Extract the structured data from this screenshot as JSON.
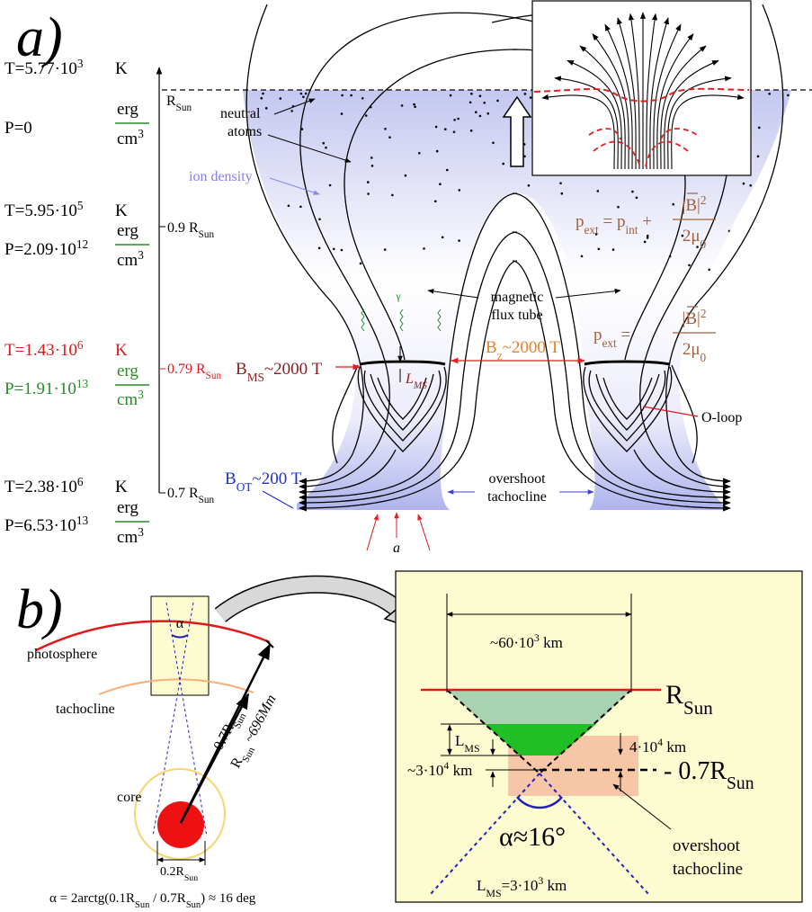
{
  "panel_a": {
    "label": "a)",
    "rows": [
      {
        "T": [
          "T=5.77·10",
          "3"
        ],
        "T_unit": "K",
        "P": [
          "P=0"
        ],
        "P_unit": [
          "erg",
          "cm",
          "3"
        ]
      },
      {
        "T": [
          "T=5.95·10",
          "5"
        ],
        "T_unit": "K",
        "P": [
          "P=2.09·10",
          "12"
        ],
        "P_unit": [
          "erg",
          "cm",
          "3"
        ]
      },
      {
        "T": [
          "T=1.43·10",
          "6"
        ],
        "T_unit": "K",
        "P": [
          "P=1.91·10",
          "13"
        ],
        "P_unit": [
          "erg",
          "cm",
          "3"
        ]
      },
      {
        "T": [
          "T=2.38·10",
          "6"
        ],
        "T_unit": "K",
        "P": [
          "P=6.53·10",
          "13"
        ],
        "P_unit": [
          "erg",
          "cm",
          "3"
        ]
      }
    ],
    "radius_labels": [
      [
        "R",
        "Sun"
      ],
      [
        "0.9 R",
        "Sun"
      ],
      [
        "0.79 R",
        "Sun"
      ],
      [
        "0.7 R",
        "Sun"
      ]
    ],
    "neutral_atoms": [
      "neutral",
      "atoms"
    ],
    "ion_density": "ion density",
    "magnetic_flux_tube": [
      "magnetic",
      "flux tube"
    ],
    "pressure_balance_top": [
      "p",
      "ext",
      " = p",
      "int",
      " + ",
      "|B|",
      "2",
      "2μ",
      "0"
    ],
    "pressure_balance_bottom": [
      "p",
      "ext",
      " = ",
      "|B|",
      "2",
      "2μ",
      "0"
    ],
    "b_ms": [
      "B",
      "MS",
      "~2000 T"
    ],
    "l_ms": [
      "L",
      "MS"
    ],
    "b_z": [
      "B",
      "z",
      "~2000 T"
    ],
    "o_loop": "O-loop",
    "b_ot": [
      "B",
      "OT",
      "~200 T"
    ],
    "overshoot_tachocline": [
      "overshoot",
      "tachocline"
    ],
    "gamma": "γ",
    "a": "a"
  },
  "panel_b": {
    "label": "b)",
    "photosphere": "photosphere",
    "tachocline": "tachocline",
    "core": "core",
    "alpha": "α",
    "tachocline_radius": [
      "0.7R",
      "Sun"
    ],
    "sun_radius": [
      "R",
      "Sun",
      " ~696Mm"
    ],
    "core_diameter": [
      "0.2R",
      "Sun"
    ],
    "formula": [
      "α = 2arctg(0.1R",
      "Sun",
      " / 0.7R",
      "Sun",
      ") ≈ 16 deg"
    ],
    "inset": {
      "width": [
        "~60·10",
        "3",
        " km"
      ],
      "photosphere_radius": [
        "R",
        "Sun"
      ],
      "l_ms": [
        "L",
        "MS"
      ],
      "gap": [
        "4·10",
        "4",
        " km"
      ],
      "depth": [
        "~3·10",
        "4",
        " km"
      ],
      "tachocline_radius": [
        "- 0.7R",
        "Sun"
      ],
      "alpha": "α≈16°",
      "overshoot_tachocline": [
        "overshoot",
        "tachocline"
      ],
      "l_ms_value": [
        "L",
        "MS",
        "=3·10",
        "3",
        " km"
      ]
    }
  }
}
